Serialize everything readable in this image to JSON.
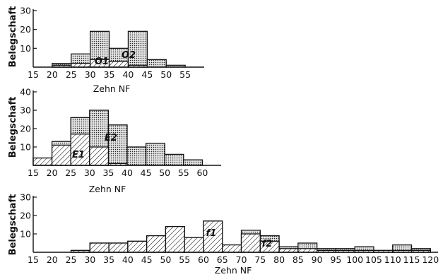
{
  "chart_data": [
    {
      "type": "histogram",
      "xlabel": "Zehn NF",
      "ylabel": "Belegschaft",
      "xlim": [
        15,
        60
      ],
      "ylim": [
        0,
        30
      ],
      "yticks": [
        10,
        20,
        30
      ],
      "xticks": [
        15,
        20,
        25,
        30,
        35,
        40,
        45,
        50,
        55
      ],
      "bin_width": 5,
      "series": [
        {
          "name": "O1",
          "pattern": "hatch",
          "bins": [
            [
              20,
              1
            ],
            [
              25,
              2
            ],
            [
              30,
              4
            ],
            [
              35,
              3
            ],
            [
              40,
              1
            ],
            [
              45,
              0
            ],
            [
              50,
              0
            ]
          ]
        },
        {
          "name": "O2",
          "pattern": "dots",
          "bins": [
            [
              20,
              2
            ],
            [
              25,
              7
            ],
            [
              30,
              19
            ],
            [
              35,
              10
            ],
            [
              40,
              19
            ],
            [
              45,
              4
            ],
            [
              50,
              1
            ]
          ]
        }
      ]
    },
    {
      "type": "histogram",
      "xlabel": "Zehn NF",
      "ylabel": "Belegschaft",
      "xlim": [
        15,
        65
      ],
      "ylim": [
        0,
        40
      ],
      "yticks": [
        10,
        20,
        30,
        40
      ],
      "xticks": [
        15,
        20,
        25,
        30,
        35,
        40,
        45,
        50,
        55,
        60
      ],
      "bin_width": 5,
      "series": [
        {
          "name": "E1",
          "pattern": "hatch",
          "bins": [
            [
              15,
              4
            ],
            [
              20,
              11
            ],
            [
              25,
              17
            ],
            [
              30,
              10
            ],
            [
              35,
              1
            ],
            [
              40,
              0
            ],
            [
              45,
              0
            ],
            [
              50,
              0
            ],
            [
              55,
              0
            ]
          ]
        },
        {
          "name": "E2",
          "pattern": "dots",
          "bins": [
            [
              15,
              4
            ],
            [
              20,
              13
            ],
            [
              25,
              26
            ],
            [
              30,
              30
            ],
            [
              35,
              22
            ],
            [
              40,
              10
            ],
            [
              45,
              12
            ],
            [
              50,
              6
            ],
            [
              55,
              3
            ]
          ]
        }
      ]
    },
    {
      "type": "histogram",
      "xlabel": "Zehn NF",
      "ylabel": "Belegschaft",
      "xlim": [
        15,
        122
      ],
      "ylim": [
        0,
        30
      ],
      "yticks": [
        10,
        20,
        30
      ],
      "xticks": [
        15,
        20,
        25,
        30,
        35,
        40,
        45,
        50,
        55,
        60,
        65,
        70,
        75,
        80,
        85,
        90,
        95,
        100,
        105,
        110,
        115,
        120
      ],
      "bin_width": 5,
      "series": [
        {
          "name": "f1",
          "pattern": "hatch",
          "bins": [
            [
              25,
              1
            ],
            [
              30,
              5
            ],
            [
              35,
              5
            ],
            [
              40,
              6
            ],
            [
              45,
              9
            ],
            [
              50,
              14
            ],
            [
              55,
              8
            ],
            [
              60,
              17
            ],
            [
              65,
              4
            ],
            [
              70,
              10
            ],
            [
              75,
              6
            ],
            [
              80,
              2
            ],
            [
              85,
              2
            ],
            [
              90,
              1
            ],
            [
              95,
              1
            ],
            [
              100,
              1
            ],
            [
              105,
              1
            ],
            [
              110,
              1
            ],
            [
              115,
              1
            ]
          ]
        },
        {
          "name": "f2",
          "pattern": "dots",
          "bins": [
            [
              25,
              1
            ],
            [
              30,
              5
            ],
            [
              35,
              5
            ],
            [
              40,
              6
            ],
            [
              45,
              9
            ],
            [
              50,
              14
            ],
            [
              55,
              8
            ],
            [
              60,
              17
            ],
            [
              65,
              4
            ],
            [
              70,
              12
            ],
            [
              75,
              9
            ],
            [
              80,
              3
            ],
            [
              85,
              5
            ],
            [
              90,
              2
            ],
            [
              95,
              2
            ],
            [
              100,
              3
            ],
            [
              105,
              1
            ],
            [
              110,
              4
            ],
            [
              115,
              2
            ]
          ]
        }
      ]
    }
  ]
}
